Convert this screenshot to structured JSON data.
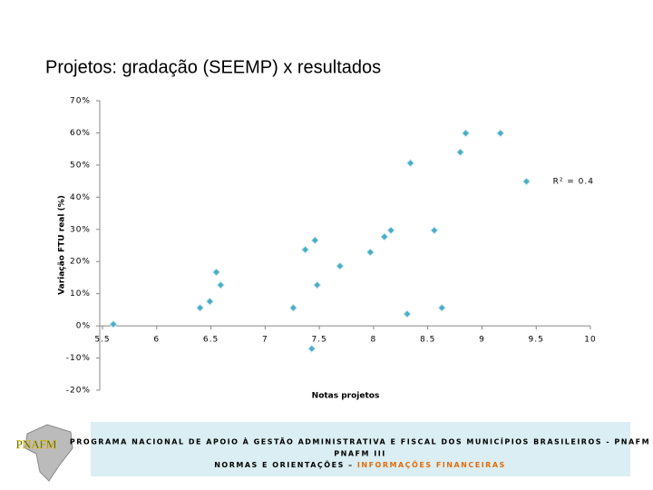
{
  "chart_data": {
    "type": "scatter",
    "title": "Projetos: gradação (SEEMP) x resultados",
    "x_label": "Notas projetos",
    "y_label": "Variação FTU real (%)",
    "annotation": "R² = 0.4",
    "color": "#4bacc6",
    "x": [
      5.6,
      6.4,
      6.49,
      6.55,
      6.59,
      7.26,
      7.37,
      7.43,
      7.46,
      7.48,
      7.69,
      7.97,
      8.1,
      8.16,
      8.31,
      8.34,
      8.56,
      8.63,
      8.8,
      8.85,
      9.17,
      9.41
    ],
    "values": [
      0.5,
      5.6,
      7.6,
      16.7,
      12.7,
      5.6,
      23.7,
      -7.1,
      26.6,
      12.7,
      18.6,
      22.9,
      27.7,
      29.7,
      3.7,
      50.6,
      29.7,
      5.6,
      54,
      59.9,
      59.9,
      44.9
    ],
    "xlim": [
      5.5,
      10
    ],
    "xticks": [
      5.5,
      6,
      6.5,
      7,
      7.5,
      8,
      8.5,
      9,
      9.5,
      10
    ],
    "ylim": [
      -20,
      70
    ],
    "yticks": [
      {
        "value": -20,
        "label": "-20%"
      },
      {
        "value": -10,
        "label": "-10%"
      },
      {
        "value": 0,
        "label": "0%"
      },
      {
        "value": 10,
        "label": "10%"
      },
      {
        "value": 20,
        "label": "20%"
      },
      {
        "value": 30,
        "label": "30%"
      },
      {
        "value": 40,
        "label": "40%"
      },
      {
        "value": 50,
        "label": "50%"
      },
      {
        "value": 60,
        "label": "60%"
      },
      {
        "value": 70,
        "label": "70%"
      }
    ],
    "grid": false
  },
  "footer": {
    "logo": "PNAFM",
    "line1": "PROGRAMA NACIONAL DE APOIO À GESTÃO ADMINISTRATIVA E FISCAL DOS MUNICÍPIOS BRASILEIROS - PNAFM",
    "line2": "PNAFM III",
    "line3": "NORMAS E ORIENTAÇÕES – ",
    "line3_highlight": "INFORMAÇÕES FINANCEIRAS"
  }
}
